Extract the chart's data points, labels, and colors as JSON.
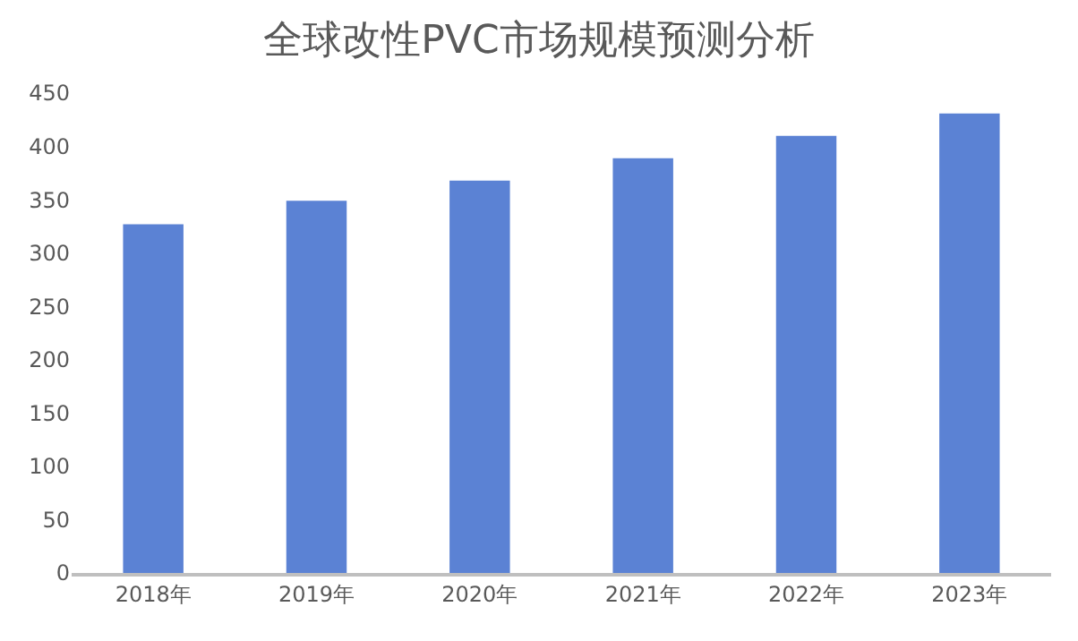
{
  "chart_data": {
    "type": "bar",
    "title": "全球改性PVC市场规模预测分析",
    "categories": [
      "2018年",
      "2019年",
      "2020年",
      "2021年",
      "2022年",
      "2023年"
    ],
    "values": [
      327,
      349,
      368,
      389,
      410,
      431
    ],
    "color": "#5b82d4",
    "ylim": [
      0,
      450
    ],
    "yticks": [
      0,
      50,
      100,
      150,
      200,
      250,
      300,
      350,
      400,
      450
    ],
    "grid": false
  }
}
